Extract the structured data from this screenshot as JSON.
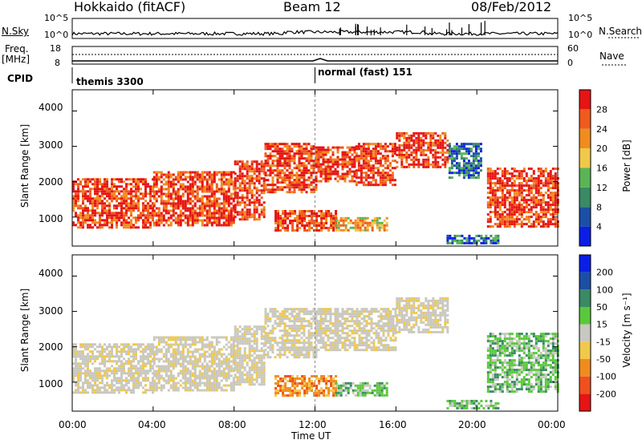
{
  "header": {
    "left": "Hokkaido (fitACF)",
    "center": "Beam 12",
    "right": "08/Feb/2012"
  },
  "strips": {
    "nsky_label": "N.Sky",
    "nsky_left_ticks": [
      "10^5",
      "10^0"
    ],
    "nsky_right_ticks": [
      "10^5",
      "10^0"
    ],
    "nsearch_label": "N.Search",
    "freq_label": "Freq.",
    "freq_unit": "[MHz]",
    "freq_ticks": [
      "18",
      "8"
    ],
    "nave_ticks": [
      "60",
      "0"
    ],
    "nave_label": "Nave",
    "cpid_label": "CPID",
    "cpid_entries": [
      {
        "name": "themis 3300",
        "start_hour": 0
      },
      {
        "name": "normal (fast) 151",
        "start_hour": 12
      }
    ]
  },
  "colors": {
    "power_scale": [
      "#0a1ee6",
      "#1b4fa5",
      "#3a8a64",
      "#5ab455",
      "#f0c84a",
      "#f08c1e",
      "#f05a1e",
      "#e61414"
    ],
    "velocity_scale": [
      "#e61414",
      "#f0501e",
      "#f08c1e",
      "#f0c84a",
      "#c8c8c0",
      "#5ac83c",
      "#3a8a64",
      "#1b4fa5",
      "#0a1ee6"
    ]
  },
  "chart_data": [
    {
      "type": "heatmap",
      "title": "",
      "xlabel": "Time UT",
      "ylabel": "Slant Range [km]",
      "xlim": [
        0,
        24
      ],
      "ylim": [
        180,
        4600
      ],
      "x_ticks": [
        "00:00",
        "04:00",
        "08:00",
        "12:00",
        "16:00",
        "20:00",
        "00:00"
      ],
      "y_ticks": [
        "1000",
        "2000",
        "3000",
        "4000"
      ],
      "colorbar_label": "Power [dB]",
      "colorbar_ticks": [
        "4",
        "8",
        "12",
        "16",
        "20",
        "24",
        "28"
      ],
      "regions": [
        {
          "t0": 0.0,
          "t1": 4.0,
          "r0": 700,
          "r1": 2100,
          "level": "high"
        },
        {
          "t0": 4.0,
          "t1": 8.0,
          "r0": 800,
          "r1": 2300,
          "level": "high"
        },
        {
          "t0": 8.0,
          "t1": 9.5,
          "r0": 900,
          "r1": 2600,
          "level": "high"
        },
        {
          "t0": 9.5,
          "t1": 12.0,
          "r0": 1700,
          "r1": 3100,
          "level": "high"
        },
        {
          "t0": 12.0,
          "t1": 14.0,
          "r0": 2000,
          "r1": 3000,
          "level": "high"
        },
        {
          "t0": 14.0,
          "t1": 16.0,
          "r0": 1900,
          "r1": 3100,
          "level": "high"
        },
        {
          "t0": 16.0,
          "t1": 18.6,
          "r0": 2400,
          "r1": 3400,
          "level": "high"
        },
        {
          "t0": 10.0,
          "t1": 13.0,
          "r0": 600,
          "r1": 1200,
          "level": "high"
        },
        {
          "t0": 13.0,
          "t1": 15.5,
          "r0": 650,
          "r1": 1000,
          "level": "medium"
        },
        {
          "t0": 18.6,
          "t1": 20.2,
          "r0": 2100,
          "r1": 3100,
          "level": "low"
        },
        {
          "t0": 20.5,
          "t1": 24.0,
          "r0": 700,
          "r1": 2400,
          "level": "high"
        },
        {
          "t0": 18.5,
          "t1": 21.0,
          "r0": 250,
          "r1": 500,
          "level": "low"
        }
      ]
    },
    {
      "type": "heatmap",
      "title": "",
      "xlabel": "Time UT",
      "ylabel": "Slant Range [km]",
      "xlim": [
        0,
        24
      ],
      "ylim": [
        180,
        4600
      ],
      "x_ticks": [
        "00:00",
        "04:00",
        "08:00",
        "12:00",
        "16:00",
        "20:00",
        "00:00"
      ],
      "y_ticks": [
        "1000",
        "2000",
        "3000",
        "4000"
      ],
      "colorbar_label": "Velocity [m s⁻¹]",
      "colorbar_ticks": [
        "200",
        "100",
        "50",
        "15",
        "-15",
        "-50",
        "-100",
        "-200"
      ],
      "regions": [
        {
          "t0": 0.0,
          "t1": 4.0,
          "r0": 700,
          "r1": 2100,
          "level": "ground"
        },
        {
          "t0": 4.0,
          "t1": 8.0,
          "r0": 800,
          "r1": 2300,
          "level": "ground"
        },
        {
          "t0": 8.0,
          "t1": 9.5,
          "r0": 900,
          "r1": 2600,
          "level": "ground"
        },
        {
          "t0": 9.5,
          "t1": 12.0,
          "r0": 1700,
          "r1": 3100,
          "level": "ground"
        },
        {
          "t0": 12.0,
          "t1": 16.0,
          "r0": 1900,
          "r1": 3100,
          "level": "ground"
        },
        {
          "t0": 16.0,
          "t1": 18.6,
          "r0": 2400,
          "r1": 3400,
          "level": "ground"
        },
        {
          "t0": 10.0,
          "t1": 13.0,
          "r0": 600,
          "r1": 1200,
          "level": "negative"
        },
        {
          "t0": 13.0,
          "t1": 15.5,
          "r0": 650,
          "r1": 1000,
          "level": "positive"
        },
        {
          "t0": 20.5,
          "t1": 24.0,
          "r0": 700,
          "r1": 2400,
          "level": "positive"
        },
        {
          "t0": 18.5,
          "t1": 21.0,
          "r0": 250,
          "r1": 500,
          "level": "positive"
        }
      ]
    }
  ]
}
